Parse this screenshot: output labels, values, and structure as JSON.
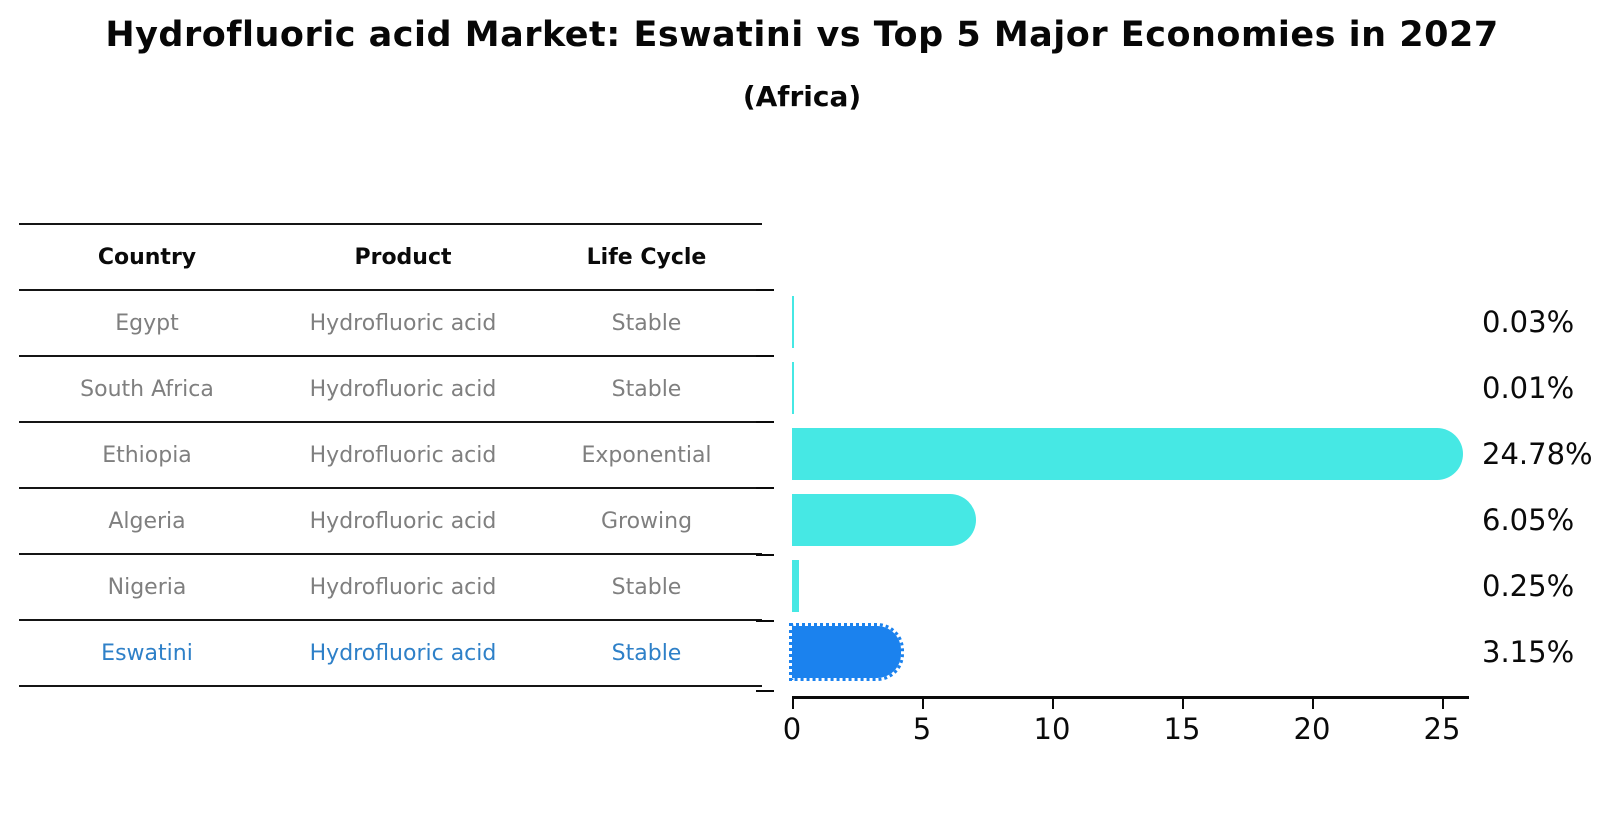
{
  "title": "Hydrofluoric acid Market: Eswatini vs Top 5 Major Economies in 2027",
  "subtitle": "(Africa)",
  "table": {
    "headers": [
      "Country",
      "Product",
      "Life Cycle"
    ]
  },
  "chart_data": {
    "type": "bar",
    "orientation": "horizontal",
    "title": "Hydrofluoric acid Market: Eswatini vs Top 5 Major Economies in 2027 (Africa)",
    "xlabel": "",
    "ylabel": "",
    "xlim": [
      0,
      26
    ],
    "x_ticks": [
      "0",
      "5",
      "10",
      "15",
      "20",
      "25"
    ],
    "grid": false,
    "legend": false,
    "rows": [
      {
        "country": "Egypt",
        "product": "Hydrofluoric acid",
        "life_cycle": "Stable",
        "value": 0.03,
        "label": "0.03%",
        "highlight": false
      },
      {
        "country": "South Africa",
        "product": "Hydrofluoric acid",
        "life_cycle": "Stable",
        "value": 0.01,
        "label": "0.01%",
        "highlight": false
      },
      {
        "country": "Ethiopia",
        "product": "Hydrofluoric acid",
        "life_cycle": "Exponential",
        "value": 24.78,
        "label": "24.78%",
        "highlight": false
      },
      {
        "country": "Algeria",
        "product": "Hydrofluoric acid",
        "life_cycle": "Growing",
        "value": 6.05,
        "label": "6.05%",
        "highlight": false
      },
      {
        "country": "Nigeria",
        "product": "Hydrofluoric acid",
        "life_cycle": "Stable",
        "value": 0.25,
        "label": "0.25%",
        "highlight": false
      },
      {
        "country": "Eswatini",
        "product": "Hydrofluoric acid",
        "life_cycle": "Stable",
        "value": 3.15,
        "label": "3.15%",
        "highlight": true
      }
    ],
    "colors": {
      "bar_default": "#46e8e4",
      "bar_highlight": "#1b82ee",
      "highlight_text": "#2e80c8",
      "row_text": "#7f7f7f",
      "axis_text": "#0a0a0a"
    }
  }
}
